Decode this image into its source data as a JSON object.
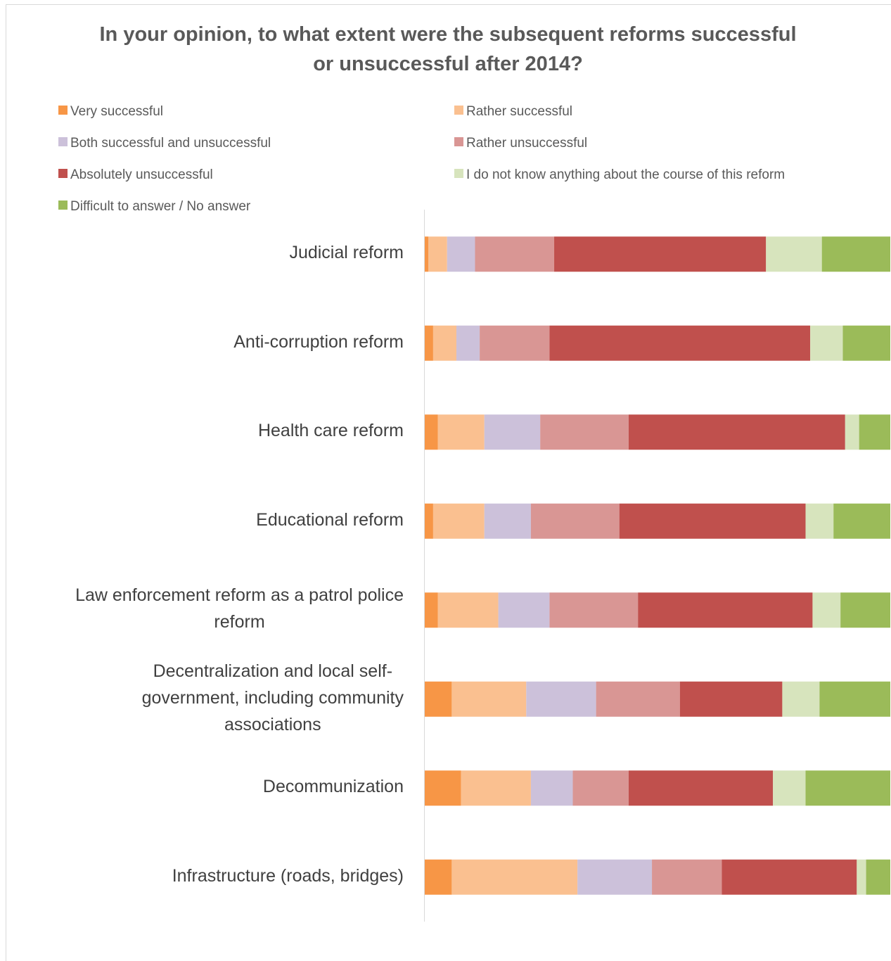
{
  "chart_data": {
    "type": "bar",
    "orientation": "horizontal",
    "stacked": "percent",
    "title": "In your opinion, to what extent were the subsequent reforms successful or unsuccessful after 2014?",
    "categories": [
      "Judicial reform",
      "Anti-corruption reform",
      "Health care reform",
      "Educational reform",
      "Law enforcement reform as a patrol police reform",
      "Decentralization and local self-government, including community associations",
      "Decommunization",
      "Infrastructure (roads, bridges)"
    ],
    "series": [
      {
        "name": "Very successful",
        "color": "#f79646",
        "values": [
          0.8,
          1.8,
          2.8,
          1.8,
          2.8,
          5.8,
          7.8,
          5.8
        ]
      },
      {
        "name": "Rather successful",
        "color": "#fac090",
        "values": [
          4.0,
          5.0,
          10.0,
          11.0,
          13.0,
          16.0,
          15.0,
          27.0
        ]
      },
      {
        "name": "Both successful and unsuccessful",
        "color": "#ccc1da",
        "values": [
          6.0,
          5.0,
          12.0,
          10.0,
          11.0,
          15.0,
          9.0,
          16.0
        ]
      },
      {
        "name": "Rather unsuccessful",
        "color": "#d99694",
        "values": [
          17.0,
          15.0,
          19.0,
          19.0,
          19.0,
          18.0,
          12.0,
          15.0
        ]
      },
      {
        "name": "Absolutely unsuccessful",
        "color": "#c0504d",
        "values": [
          45.5,
          56.0,
          46.5,
          40.0,
          37.5,
          22.0,
          31.0,
          29.0
        ]
      },
      {
        "name": "I do not know anything about the course of this reform",
        "color": "#d7e4bd",
        "values": [
          12.0,
          7.0,
          3.0,
          6.0,
          6.0,
          8.0,
          7.0,
          2.0
        ]
      },
      {
        "name": "Difficult to answer / No answer",
        "color": "#9bbb59",
        "values": [
          14.7,
          10.2,
          6.7,
          12.2,
          10.7,
          15.2,
          18.2,
          5.2
        ]
      }
    ],
    "xlim": [
      0,
      100
    ],
    "grid": false,
    "legend_position": "top"
  },
  "category_lines": [
    [
      "Judicial reform"
    ],
    [
      "Anti-corruption reform"
    ],
    [
      "Health care reform"
    ],
    [
      "Educational reform"
    ],
    [
      "Law enforcement reform as a patrol police",
      "reform"
    ],
    [
      "Decentralization and local self-",
      "government, including community",
      "associations"
    ],
    [
      "Decommunization"
    ],
    [
      "Infrastructure (roads, bridges)"
    ]
  ]
}
